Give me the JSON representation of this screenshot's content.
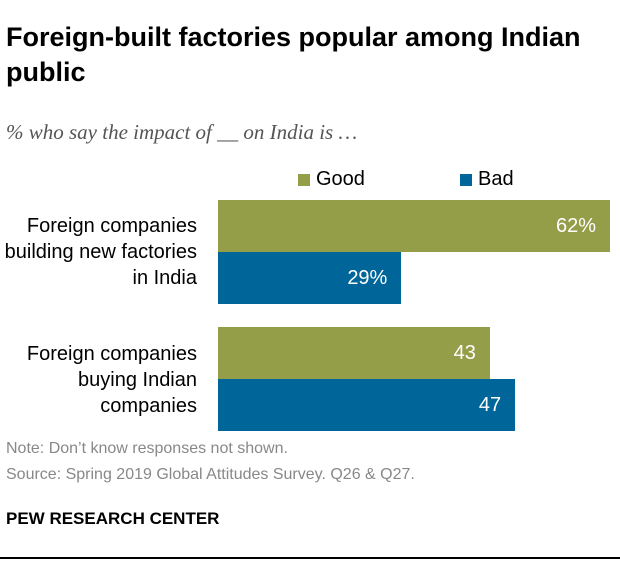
{
  "title": "Foreign-built factories popular among Indian public",
  "subtitle": "% who say the impact of __ on India is …",
  "chart_data": {
    "type": "bar",
    "orientation": "horizontal",
    "categories": [
      "Foreign companies building new factories in India",
      "Foreign companies buying Indian companies"
    ],
    "series": [
      {
        "name": "Good",
        "color": "#949D48",
        "values": [
          62,
          43
        ],
        "labels": [
          "62%",
          "43"
        ]
      },
      {
        "name": "Bad",
        "color": "#006699",
        "values": [
          29,
          47
        ],
        "labels": [
          "29%",
          "47"
        ]
      }
    ],
    "legend_placement": "top",
    "xlim": [
      0,
      62
    ]
  },
  "note": "Note: Don’t know responses not shown.",
  "source": "Spring 2019 Global Attitudes Survey. Q26 & Q27.",
  "source_prefix": "Source: ",
  "brand": "PEW RESEARCH CENTER"
}
